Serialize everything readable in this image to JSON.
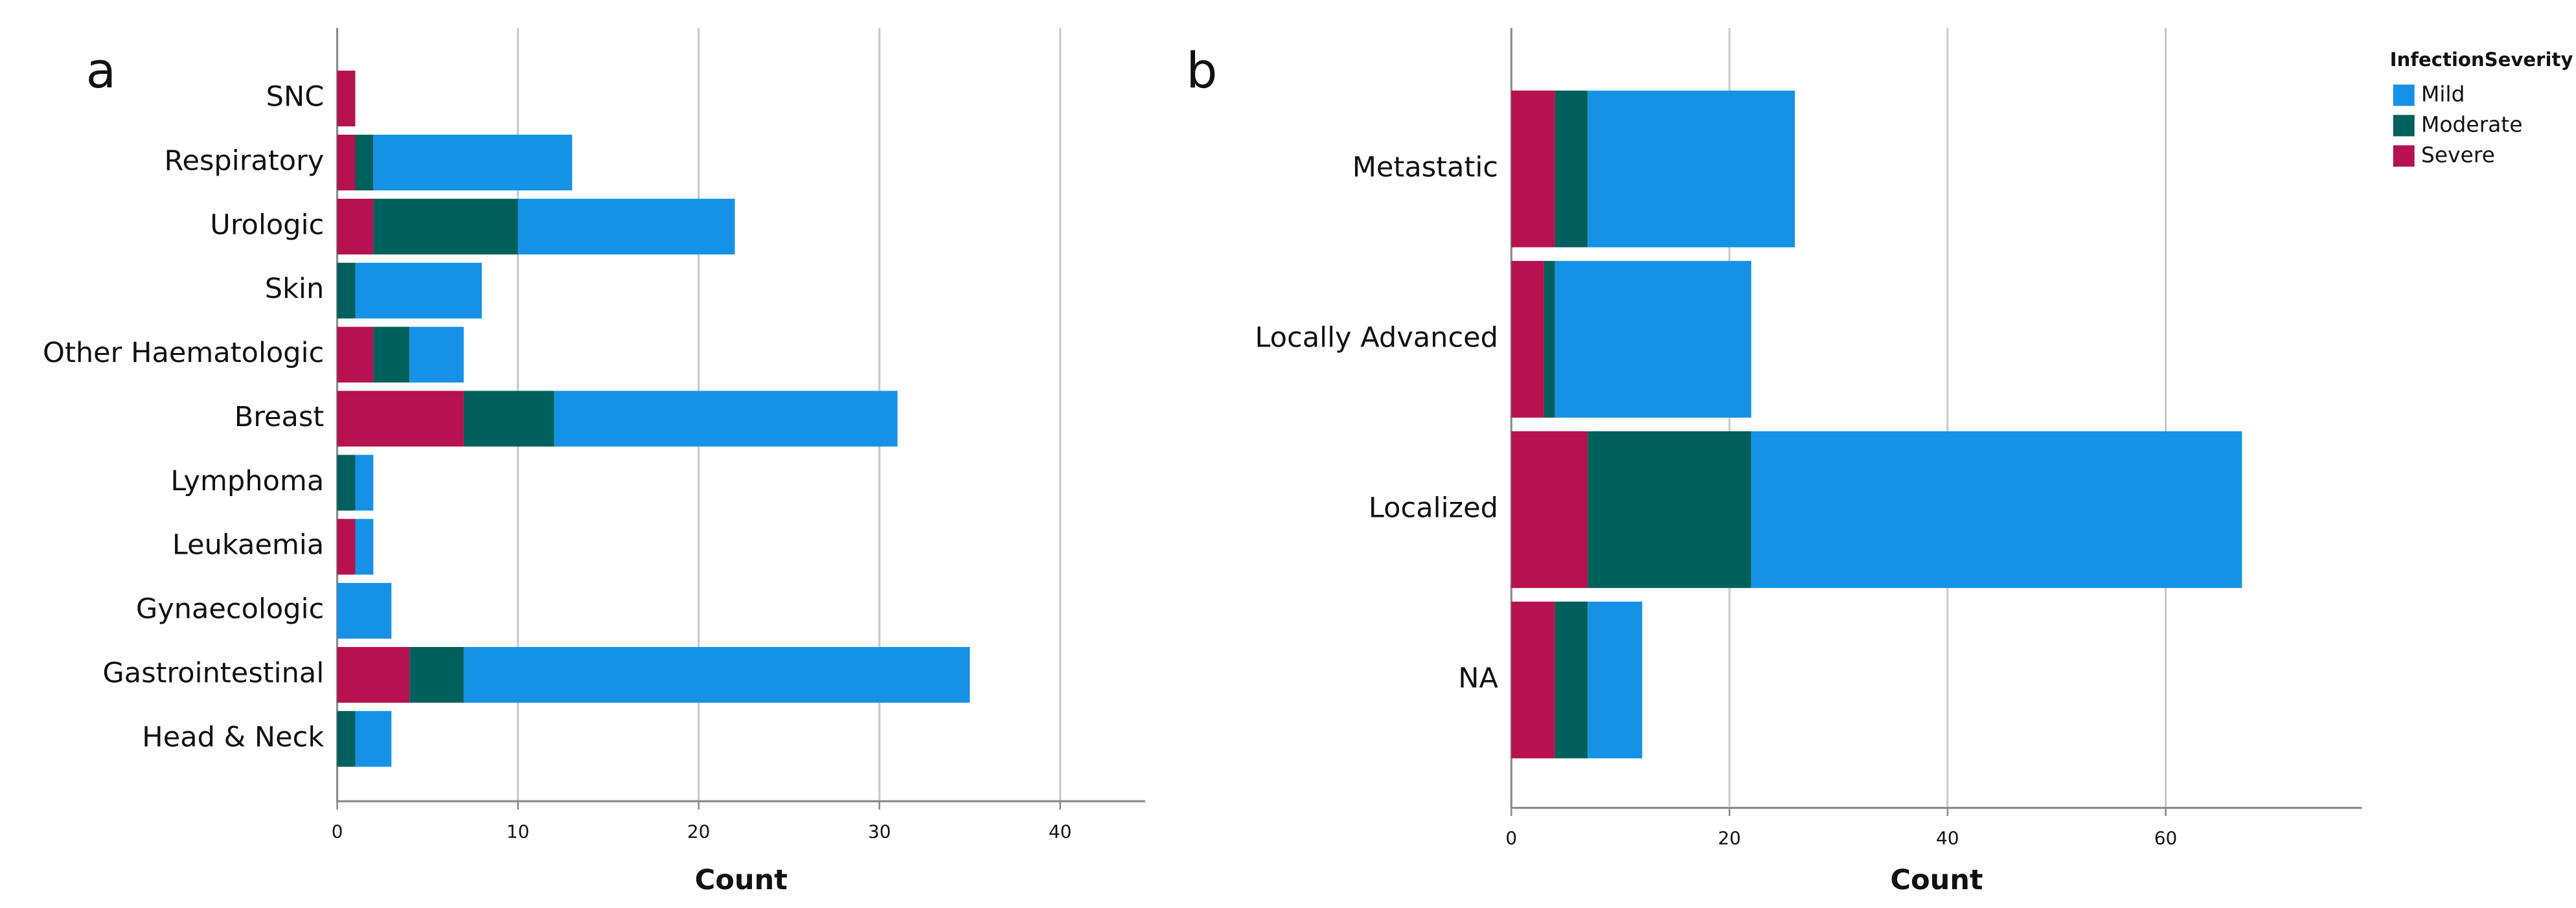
{
  "chart_data": [
    {
      "type": "bar",
      "orientation": "horizontal",
      "stacked": true,
      "panel_label": "a",
      "x_label": "Count",
      "categories": [
        "SNC",
        "Respiratory",
        "Urologic",
        "Skin",
        "Other Haematologic",
        "Breast",
        "Lymphoma",
        "Leukaemia",
        "Gynaecologic",
        "Gastrointestinal",
        "Head & Neck"
      ],
      "series": [
        {
          "name": "Mild",
          "color": "#1592e6",
          "values": [
            0,
            11,
            12,
            7,
            3,
            19,
            1,
            1,
            3,
            28,
            2
          ]
        },
        {
          "name": "Moderate",
          "color": "#00605b",
          "values": [
            0,
            1,
            8,
            1,
            2,
            5,
            1,
            0,
            0,
            3,
            1
          ]
        },
        {
          "name": "Severe",
          "color": "#b5124f",
          "values": [
            1,
            1,
            2,
            0,
            2,
            7,
            0,
            1,
            0,
            4,
            0
          ]
        }
      ],
      "xlim": [
        0,
        44.7
      ],
      "xticks": [
        0,
        10,
        20,
        30,
        40
      ],
      "grid": true
    },
    {
      "type": "bar",
      "orientation": "horizontal",
      "stacked": true,
      "panel_label": "b",
      "x_label": "Count",
      "categories": [
        "Metastatic",
        "Locally Advanced",
        "Localized",
        "NA"
      ],
      "series": [
        {
          "name": "Mild",
          "color": "#1592e6",
          "values": [
            19,
            18,
            45,
            5
          ]
        },
        {
          "name": "Moderate",
          "color": "#00605b",
          "values": [
            3,
            1,
            15,
            3
          ]
        },
        {
          "name": "Severe",
          "color": "#b5124f",
          "values": [
            4,
            3,
            7,
            4
          ]
        }
      ],
      "xlim": [
        0,
        78
      ],
      "xticks": [
        0,
        20,
        40,
        60
      ],
      "grid": true,
      "legend_title": "InfectionSeverity",
      "legend_position": "top-right"
    }
  ]
}
